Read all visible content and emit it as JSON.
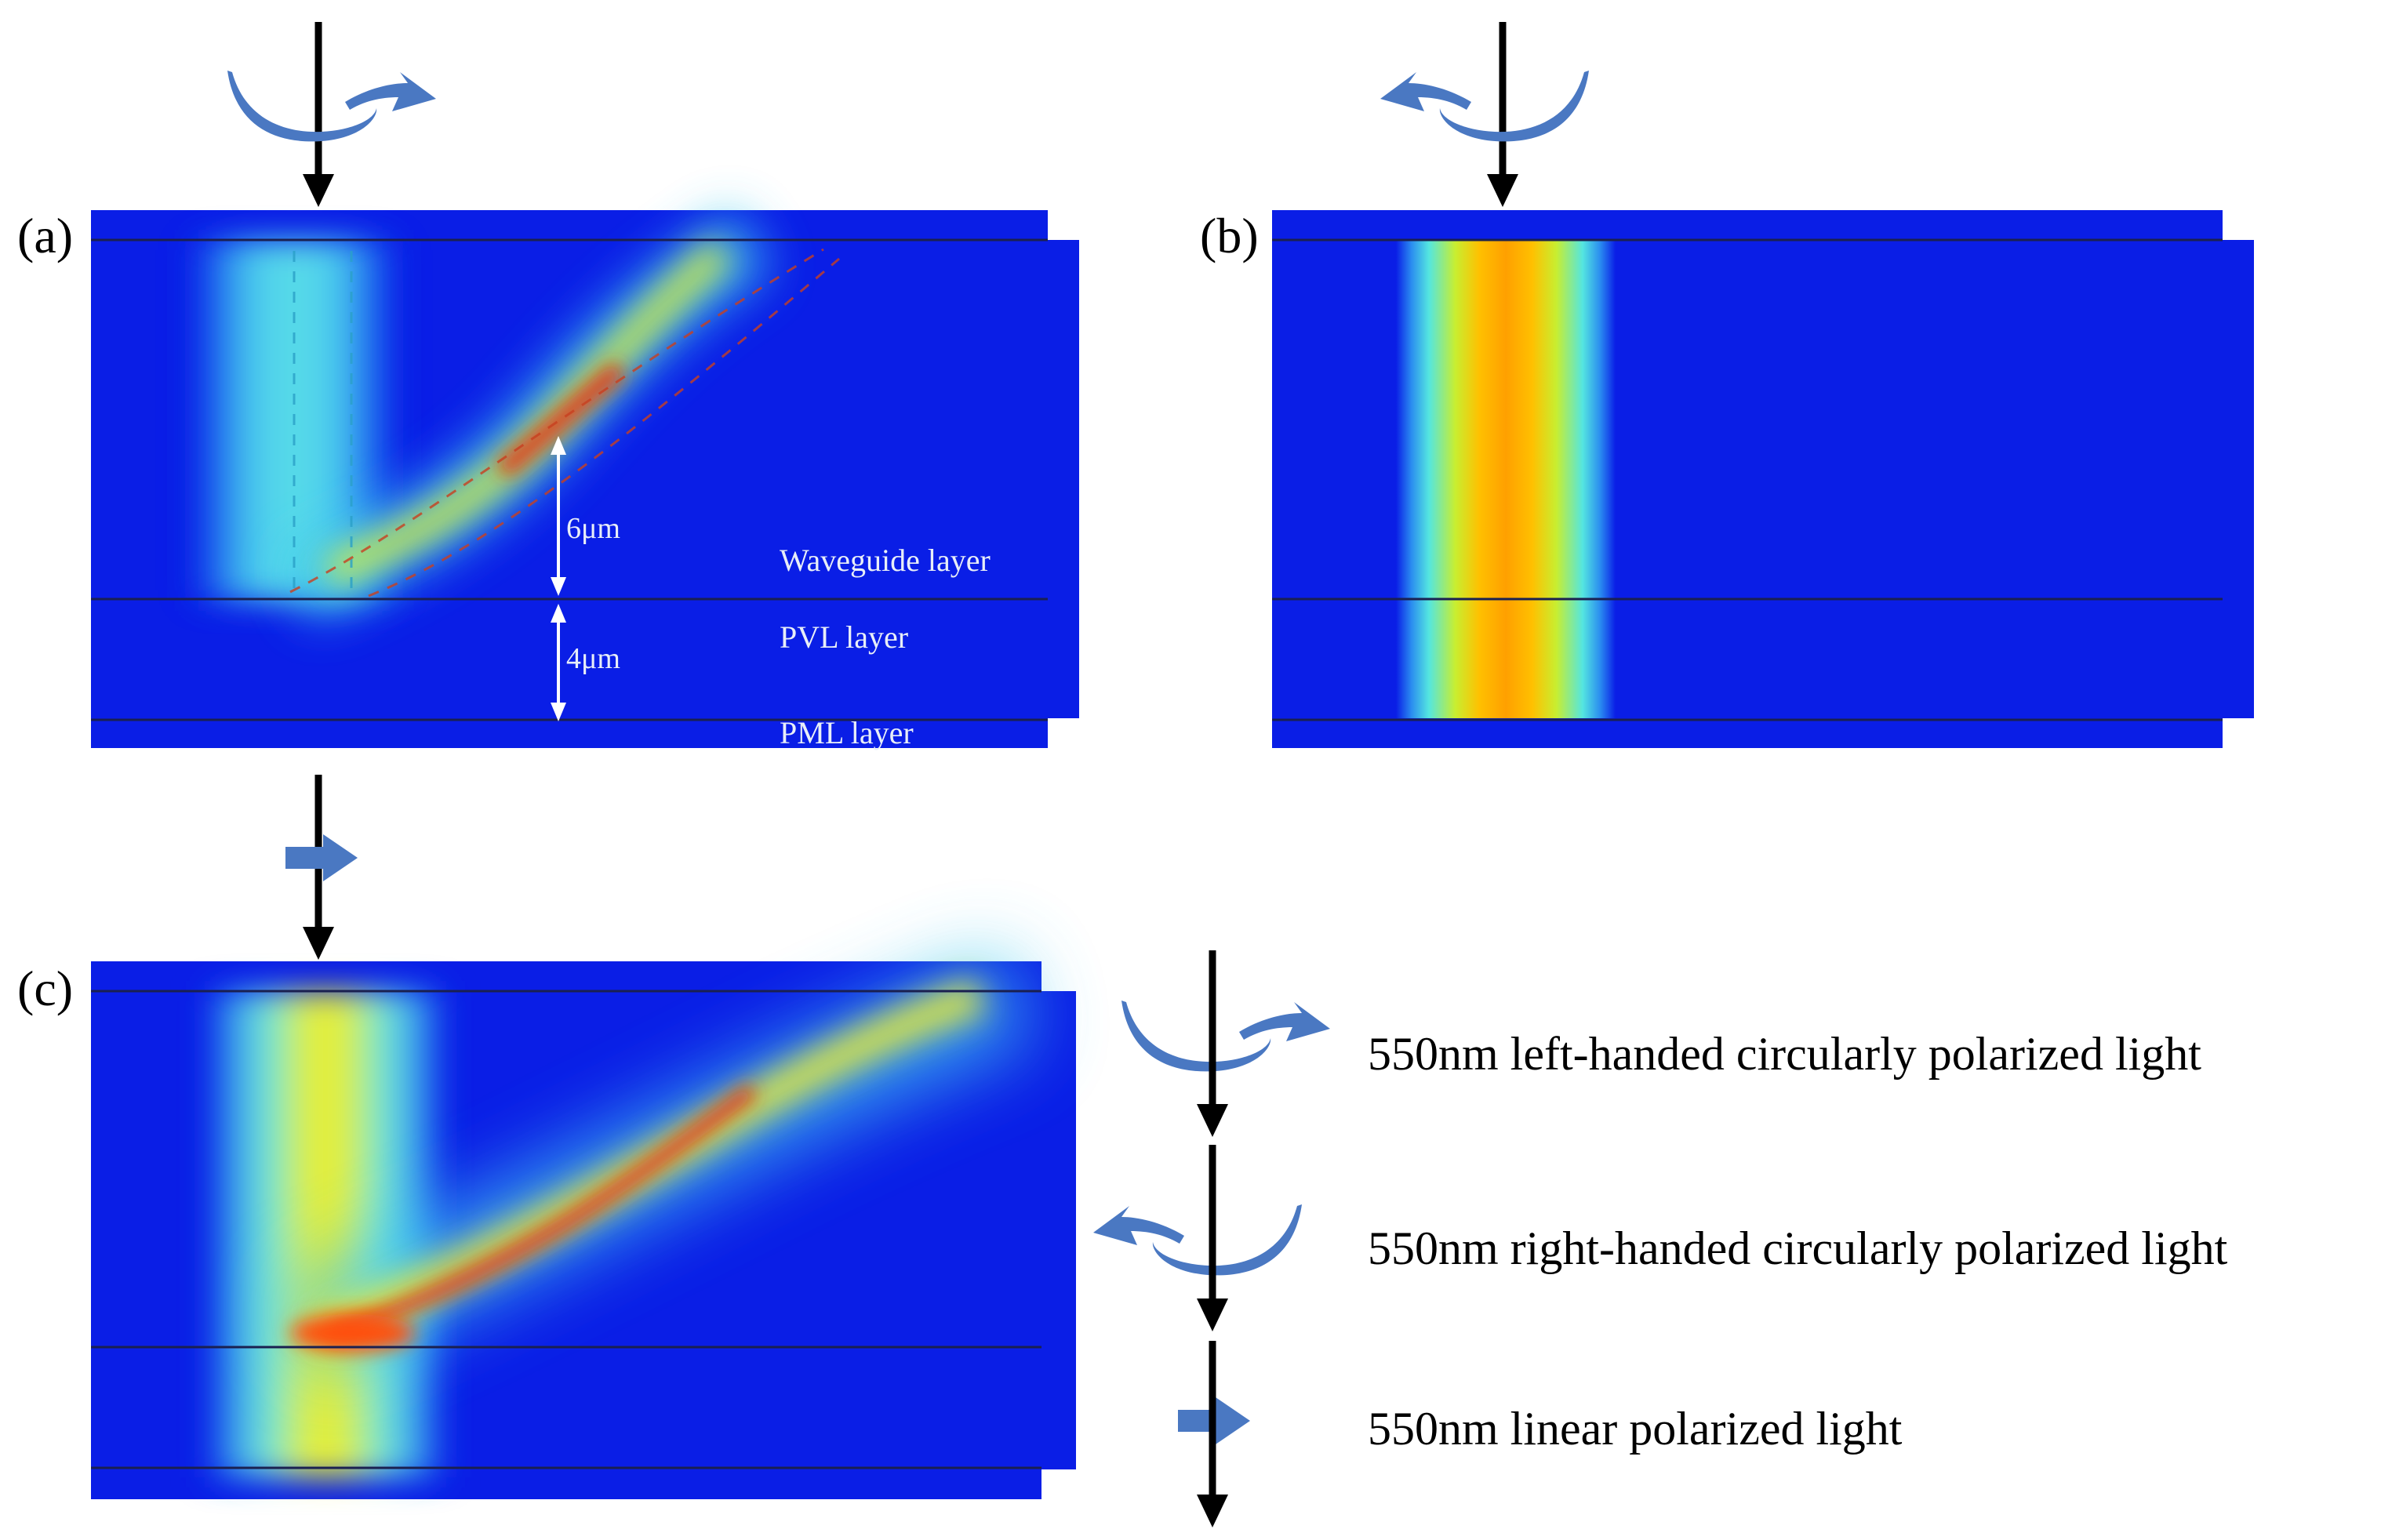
{
  "panels": {
    "a": {
      "label": "(a)"
    },
    "b": {
      "label": "(b)"
    },
    "c": {
      "label": "(c)"
    }
  },
  "annotations": {
    "waveguide_layer": "Waveguide layer",
    "pvl_layer": "PVL layer",
    "pml_layer": "PML layer",
    "thickness_waveguide": "6μm",
    "thickness_pvl": "4μm"
  },
  "legend": {
    "items": [
      {
        "icon": "left-circular-polarization-icon",
        "text": "550nm left-handed circularly polarized light"
      },
      {
        "icon": "right-circular-polarization-icon",
        "text": "550nm right-handed circularly polarized light"
      },
      {
        "icon": "linear-polarization-icon",
        "text": "550nm linear polarized light"
      }
    ]
  },
  "colors": {
    "field_background": "#0a1ee6",
    "polarization_arrow": "#4a78c2",
    "incident_arrow": "#000000",
    "layer_line": "#1a2050",
    "label_text": "#e8eef8",
    "text": "#000000"
  }
}
